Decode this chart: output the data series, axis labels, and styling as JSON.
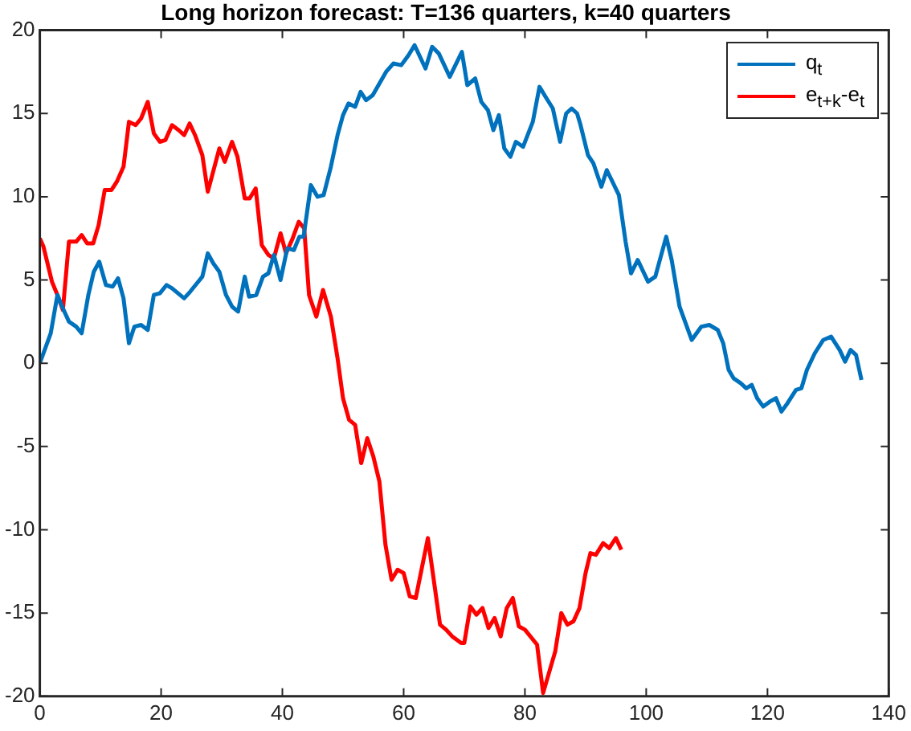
{
  "chart_data": {
    "type": "line",
    "title": "Long horizon forecast: T=136 quarters, k=40 quarters",
    "xlim": [
      0,
      140
    ],
    "xticks": [
      0,
      20,
      40,
      60,
      80,
      100,
      120,
      140
    ],
    "ylim": [
      -20,
      20
    ],
    "yticks": [
      -20,
      -15,
      -10,
      -5,
      0,
      5,
      10,
      15,
      20
    ],
    "grid": false,
    "legend": "top right",
    "marker": "none",
    "line_style": "solid",
    "series": [
      {
        "name": "q$_{t}$",
        "color": "#0072bd",
        "x": [
          0,
          1.8,
          2.9,
          3.8,
          4.8,
          6,
          6.9,
          8,
          8.9,
          9.8,
          10.9,
          12,
          12.9,
          13.8,
          14.7,
          15.6,
          16.7,
          17.8,
          18.8,
          19.8,
          20.9,
          21.8,
          23.8,
          24.8,
          25.9,
          26.8,
          27.7,
          28.6,
          29.6,
          30.7,
          31.7,
          32.7,
          33.8,
          34.5,
          35.7,
          36.8,
          37.7,
          38.6,
          39.7,
          40.8,
          41.9,
          42.8,
          43.5,
          44.7,
          45.8,
          46.8,
          48,
          49.1,
          50,
          50.9,
          52,
          52.9,
          53.8,
          54.9,
          56,
          57.1,
          58.3,
          59.6,
          60.8,
          61.8,
          63.6,
          64.7,
          65.8,
          67.6,
          69.6,
          70.5,
          71.8,
          72.8,
          73.9,
          74.8,
          75.7,
          76.6,
          77.6,
          78.5,
          79.7,
          81.3,
          82.4,
          83.4,
          84.6,
          85.8,
          86.8,
          87.7,
          88.6,
          89.1,
          90.4,
          91.3,
          92.6,
          93.5,
          95.5,
          96.6,
          97.5,
          98.6,
          100.3,
          101.5,
          103.3,
          104.2,
          105.5,
          107.5,
          109.1,
          110.4,
          111.8,
          112.7,
          113.6,
          114.4,
          115.6,
          116.5,
          117.4,
          118.3,
          119.3,
          120.4,
          121.4,
          122.3,
          123.3,
          124.7,
          125.6,
          126.5,
          127.8,
          129.2,
          130.5,
          131.9,
          132.8,
          133.7,
          134.6,
          135.5
        ],
        "values": [
          0,
          1.8,
          4.1,
          3.3,
          2.5,
          2.2,
          1.8,
          4.1,
          5.5,
          6.1,
          4.7,
          4.6,
          5.1,
          3.9,
          1.2,
          2.2,
          2.3,
          2,
          4.1,
          4.2,
          4.7,
          4.5,
          3.9,
          4.3,
          4.8,
          5.2,
          6.6,
          6,
          5.5,
          4.1,
          3.4,
          3.1,
          5.2,
          4,
          4.1,
          5.2,
          5.4,
          6.5,
          5,
          6.9,
          6.8,
          7.6,
          7.6,
          10.7,
          10,
          10.1,
          11.8,
          13.7,
          14.9,
          15.6,
          15.4,
          16.3,
          15.8,
          16.1,
          16.8,
          17.5,
          18,
          17.9,
          18.5,
          19.1,
          17.7,
          19,
          18.6,
          17.2,
          18.7,
          16.7,
          17.1,
          15.7,
          15.2,
          14,
          14.9,
          12.9,
          12.4,
          13.3,
          13,
          14.5,
          16.6,
          16,
          15.3,
          13.3,
          15,
          15.3,
          15,
          14.4,
          12.5,
          12,
          10.6,
          11.6,
          10.1,
          7.3,
          5.4,
          6.2,
          4.9,
          5.2,
          7.6,
          6.2,
          3.4,
          1.4,
          2.2,
          2.3,
          2,
          1.2,
          -0.4,
          -0.9,
          -1.2,
          -1.5,
          -1.3,
          -2.1,
          -2.6,
          -2.3,
          -2.1,
          -2.9,
          -2.4,
          -1.6,
          -1.5,
          -0.4,
          0.6,
          1.4,
          1.6,
          0.8,
          0.1,
          0.8,
          0.5,
          -1
        ]
      },
      {
        "name": "e$_{t+k}$-e$_{t}$",
        "color": "#ff0000",
        "x": [
          0,
          0.6,
          2,
          2.9,
          3.8,
          4.8,
          6,
          6.9,
          7.8,
          8.8,
          9.7,
          10.7,
          11.8,
          12.7,
          13.8,
          14.7,
          15.8,
          16.7,
          17.8,
          18.8,
          19.8,
          20.7,
          21.8,
          22.9,
          23.8,
          24.7,
          25.6,
          26.8,
          27.7,
          28.8,
          29.6,
          30.5,
          31.7,
          32.6,
          33.8,
          34.6,
          35.6,
          36.6,
          37.7,
          38.6,
          39.7,
          40.6,
          41.7,
          42.7,
          43.6,
          44.4,
          45.6,
          46.7,
          48,
          49.1,
          50,
          51,
          52,
          53,
          54,
          55,
          56,
          57,
          58,
          59,
          60,
          61,
          62,
          64,
          66,
          67,
          68,
          69.5,
          70,
          71,
          72,
          73,
          74,
          75,
          76,
          77,
          78,
          79,
          80,
          82,
          83,
          85,
          86,
          87,
          88,
          89,
          90,
          90.8,
          91.7,
          92.9,
          93.9,
          95,
          95.9
        ],
        "values": [
          7.5,
          7,
          4.9,
          4.1,
          3.2,
          7.3,
          7.3,
          7.7,
          7.2,
          7.2,
          8.3,
          10.4,
          10.4,
          10.9,
          11.8,
          14.5,
          14.3,
          14.7,
          15.7,
          13.8,
          13.3,
          13.4,
          14.3,
          14,
          13.7,
          14.4,
          13.7,
          12.5,
          10.3,
          11.8,
          12.9,
          12.1,
          13.3,
          12.4,
          9.9,
          9.9,
          10.5,
          7.1,
          6.5,
          6.3,
          7.8,
          6.6,
          7.5,
          8.5,
          8.1,
          4.1,
          2.8,
          4.4,
          2.8,
          0.3,
          -2.1,
          -3.4,
          -3.7,
          -6,
          -4.5,
          -5.6,
          -7.1,
          -10.9,
          -13,
          -12.4,
          -12.6,
          -14,
          -14.1,
          -10.5,
          -15.7,
          -16,
          -16.4,
          -16.8,
          -16.8,
          -14.6,
          -15.1,
          -14.7,
          -15.9,
          -15.3,
          -16.4,
          -14.7,
          -14.1,
          -15.8,
          -16,
          -16.9,
          -19.8,
          -17.3,
          -15,
          -15.7,
          -15.5,
          -14.7,
          -12.6,
          -11.4,
          -11.5,
          -10.8,
          -11.1,
          -10.5,
          -11.2
        ]
      }
    ]
  }
}
